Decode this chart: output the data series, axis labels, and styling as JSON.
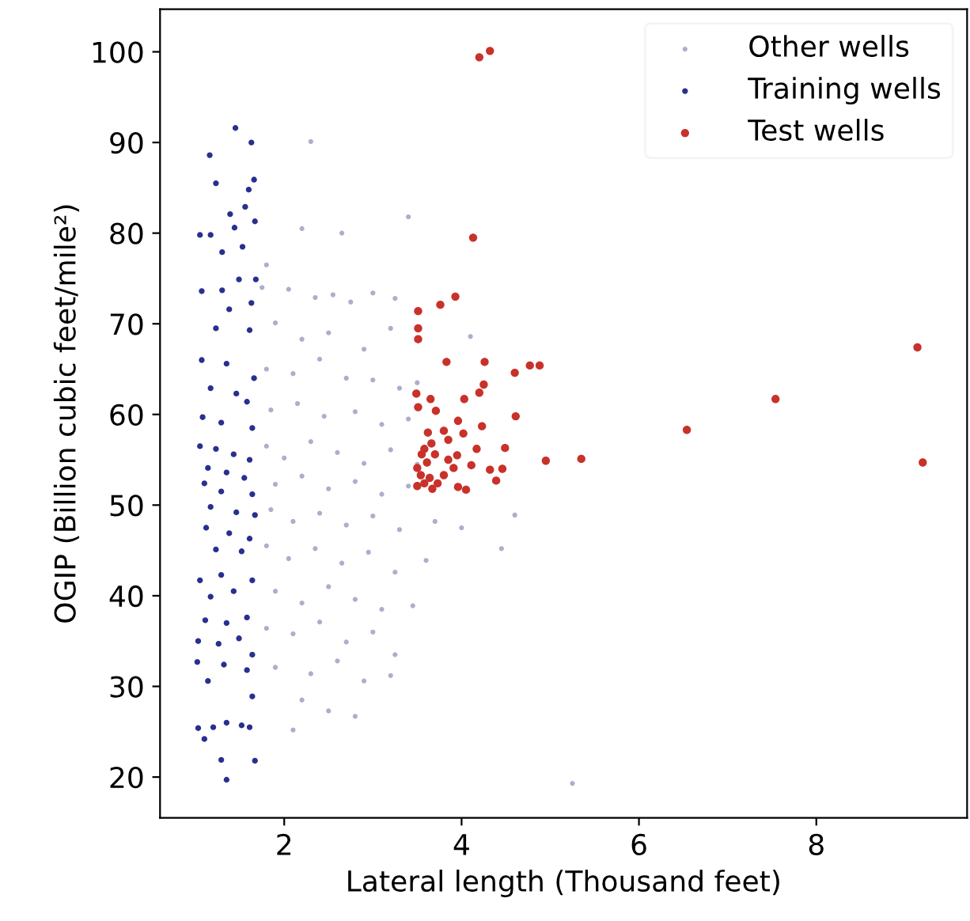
{
  "chart_data": {
    "type": "scatter",
    "xlabel": "Lateral length (Thousand feet)",
    "ylabel": "OGIP (Billion cubic feet/mile²)",
    "xlim": [
      0.6,
      9.7
    ],
    "ylim": [
      15.5,
      104.7
    ],
    "xticks": [
      2,
      4,
      6,
      8
    ],
    "yticks": [
      20,
      30,
      40,
      50,
      60,
      70,
      80,
      90,
      100
    ],
    "grid": false,
    "legend": "top right",
    "marker": "circle",
    "series": [
      {
        "name": "Other wells",
        "color": "#a9b0cc",
        "x": [
          1.75,
          2.05,
          2.35,
          2.55,
          2.75,
          3.0,
          3.25,
          2.2,
          2.65,
          3.4,
          2.3,
          1.8,
          1.9,
          2.2,
          2.5,
          2.9,
          3.2,
          1.8,
          2.1,
          2.4,
          2.7,
          3.0,
          3.3,
          3.5,
          1.85,
          2.15,
          2.45,
          2.8,
          3.1,
          3.4,
          1.8,
          2.0,
          2.3,
          2.6,
          2.9,
          3.2,
          3.5,
          1.9,
          2.2,
          2.5,
          2.8,
          3.1,
          3.4,
          1.85,
          2.1,
          2.4,
          2.7,
          3.0,
          3.3,
          3.7,
          4.0,
          1.8,
          2.05,
          2.35,
          2.65,
          2.95,
          3.25,
          3.6,
          1.9,
          2.2,
          2.5,
          2.8,
          3.1,
          3.45,
          1.8,
          2.1,
          2.4,
          2.7,
          3.0,
          3.25,
          1.9,
          2.3,
          2.6,
          2.9,
          3.2,
          2.2,
          2.5,
          2.8,
          2.1,
          5.25,
          4.1,
          4.45,
          4.6
        ],
        "values": [
          74,
          73.8,
          72.9,
          73.2,
          72.4,
          73.4,
          72.8,
          80.5,
          80,
          81.8,
          90.1,
          76.5,
          70.1,
          68.3,
          69,
          67.2,
          69.5,
          65,
          64.5,
          66.1,
          64,
          63.8,
          62.9,
          63.5,
          60.5,
          61.2,
          59.8,
          60.3,
          58.9,
          59.5,
          56.5,
          55.2,
          57,
          55.8,
          54.6,
          56.1,
          54.5,
          52.3,
          53.2,
          51.8,
          52.6,
          51.2,
          52.1,
          49.5,
          48.2,
          49.1,
          47.8,
          48.8,
          47.3,
          48.2,
          47.5,
          45.5,
          44.1,
          45.2,
          43.6,
          44.8,
          42.6,
          43.9,
          40.5,
          39.2,
          41,
          39.6,
          38.5,
          38.9,
          36.4,
          35.8,
          37.1,
          34.9,
          36,
          33.5,
          32.1,
          31.4,
          32.8,
          30.6,
          31.2,
          28.5,
          27.3,
          26.7,
          25.2,
          19.3,
          68.6,
          45.2,
          48.9
        ]
      },
      {
        "name": "Training wells",
        "color": "#28308f",
        "x": [
          1.45,
          1.63,
          1.16,
          1.23,
          1.6,
          1.66,
          1.56,
          1.39,
          1.67,
          1.05,
          1.17,
          1.44,
          1.53,
          1.3,
          1.07,
          1.3,
          1.49,
          1.68,
          1.63,
          1.38,
          1.23,
          1.61,
          1.07,
          1.35,
          1.66,
          1.17,
          1.46,
          1.58,
          1.08,
          1.29,
          1.64,
          1.05,
          1.23,
          1.43,
          1.61,
          1.14,
          1.35,
          1.55,
          1.1,
          1.29,
          1.64,
          1.17,
          1.46,
          1.67,
          1.12,
          1.38,
          1.61,
          1.23,
          1.52,
          1.05,
          1.29,
          1.64,
          1.17,
          1.43,
          1.58,
          1.11,
          1.35,
          1.03,
          1.26,
          1.49,
          1.64,
          1.02,
          1.32,
          1.58,
          1.14,
          1.64,
          1.03,
          1.2,
          1.35,
          1.52,
          1.61,
          1.1,
          1.29,
          1.67,
          1.35
        ],
        "values": [
          91.6,
          90.0,
          88.6,
          85.5,
          84.8,
          85.9,
          82.9,
          82.1,
          81.3,
          79.8,
          79.8,
          80.6,
          78.5,
          77.9,
          73.6,
          73.7,
          74.9,
          74.9,
          72.3,
          71.6,
          69.5,
          69.3,
          66.0,
          65.6,
          64.0,
          62.9,
          62.3,
          61.4,
          59.7,
          59.1,
          58.5,
          56.5,
          56.2,
          55.6,
          55.0,
          54.1,
          53.6,
          53.0,
          52.4,
          51.5,
          51.2,
          49.8,
          49.2,
          48.9,
          47.5,
          46.9,
          46.3,
          45.1,
          44.9,
          41.7,
          42.3,
          41.7,
          39.9,
          40.5,
          37.6,
          37.3,
          37.0,
          35.0,
          34.7,
          35.3,
          33.5,
          32.7,
          32.4,
          31.8,
          30.6,
          28.9,
          25.4,
          25.5,
          26.0,
          25.7,
          25.5,
          24.2,
          21.9,
          21.8,
          19.7
        ]
      },
      {
        "name": "Test wells",
        "color": "#c8322a",
        "x": [
          4.2,
          4.32,
          4.13,
          3.93,
          3.76,
          3.51,
          3.51,
          3.51,
          3.83,
          4.26,
          4.6,
          4.77,
          4.88,
          9.14,
          7.54,
          6.54,
          9.2,
          4.95,
          5.35,
          3.49,
          3.51,
          3.65,
          3.71,
          4.03,
          4.2,
          4.25,
          4.61,
          3.96,
          4.23,
          3.62,
          3.8,
          4.02,
          4.49,
          4.17,
          3.95,
          3.85,
          3.58,
          3.7,
          4.11,
          4.32,
          4.46,
          4.39,
          3.91,
          3.8,
          4.05,
          3.96,
          3.5,
          3.54,
          3.5,
          3.58,
          3.64,
          3.67,
          3.73,
          3.61,
          3.55,
          3.66,
          3.85
        ],
        "values": [
          99.4,
          100.1,
          79.5,
          73.0,
          72.1,
          71.4,
          69.5,
          68.3,
          65.8,
          65.8,
          64.6,
          65.4,
          65.4,
          67.4,
          61.7,
          58.3,
          54.7,
          54.9,
          55.1,
          62.3,
          60.8,
          61.7,
          60.4,
          61.7,
          62.4,
          63.3,
          59.8,
          59.3,
          58.7,
          58.0,
          58.2,
          57.9,
          56.3,
          56.2,
          55.5,
          57.2,
          56.2,
          55.6,
          54.4,
          53.9,
          54.0,
          52.7,
          54.1,
          53.3,
          51.7,
          52.0,
          54.1,
          53.3,
          52.1,
          52.4,
          53.0,
          51.8,
          52.4,
          54.7,
          55.6,
          56.8,
          55.0
        ]
      }
    ]
  }
}
